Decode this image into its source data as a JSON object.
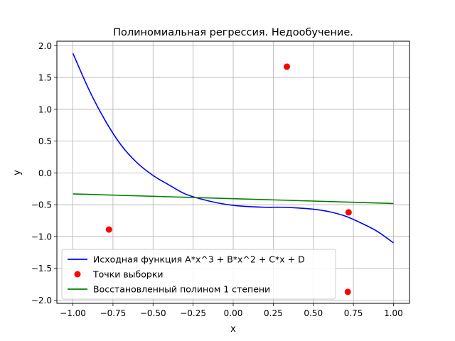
{
  "chart_data": {
    "type": "line",
    "title": "Полиномиальная регрессия. Недообучение.",
    "xlabel": "x",
    "ylabel": "y",
    "xlim": [
      -1.1,
      1.1
    ],
    "ylim": [
      -2.05,
      2.07
    ],
    "grid": true,
    "legend_position": "lower-left",
    "x_ticks": [
      -1.0,
      -0.75,
      -0.5,
      -0.25,
      0.0,
      0.25,
      0.5,
      0.75,
      1.0
    ],
    "x_tick_labels": [
      "−1.00",
      "−0.75",
      "−0.50",
      "−0.25",
      "0.00",
      "0.25",
      "0.50",
      "0.75",
      "1.00"
    ],
    "y_ticks": [
      -2.0,
      -1.5,
      -1.0,
      -0.5,
      0.0,
      0.5,
      1.0,
      1.5,
      2.0
    ],
    "y_tick_labels": [
      "−2.0",
      "−1.5",
      "−1.0",
      "−0.5",
      "0.0",
      "0.5",
      "1.0",
      "1.5",
      "2.0"
    ],
    "series": [
      {
        "name": "Исходная функция A*x^3 + B*x^2 + C*x + D",
        "kind": "line",
        "color": "#0000ff",
        "x": [
          -1.0,
          -0.9,
          -0.8,
          -0.7,
          -0.6,
          -0.5,
          -0.4,
          -0.3,
          -0.2,
          -0.1,
          0.0,
          0.1,
          0.2,
          0.3,
          0.4,
          0.5,
          0.6,
          0.7,
          0.8,
          0.9,
          1.0
        ],
        "y": [
          1.88,
          1.31,
          0.83,
          0.44,
          0.16,
          -0.04,
          -0.19,
          -0.33,
          -0.41,
          -0.47,
          -0.51,
          -0.53,
          -0.54,
          -0.54,
          -0.55,
          -0.57,
          -0.61,
          -0.68,
          -0.79,
          -0.92,
          -1.1
        ]
      },
      {
        "name": "Точки выборки",
        "kind": "scatter",
        "color": "#ff0000",
        "x": [
          -0.775,
          0.335,
          0.72,
          0.715
        ],
        "y": [
          -0.89,
          1.67,
          -0.62,
          -1.87
        ]
      },
      {
        "name": "Восстановленный полином 1 степени",
        "kind": "line",
        "color": "#008000",
        "x": [
          -1.0,
          1.0
        ],
        "y": [
          -0.33,
          -0.48
        ]
      }
    ]
  }
}
